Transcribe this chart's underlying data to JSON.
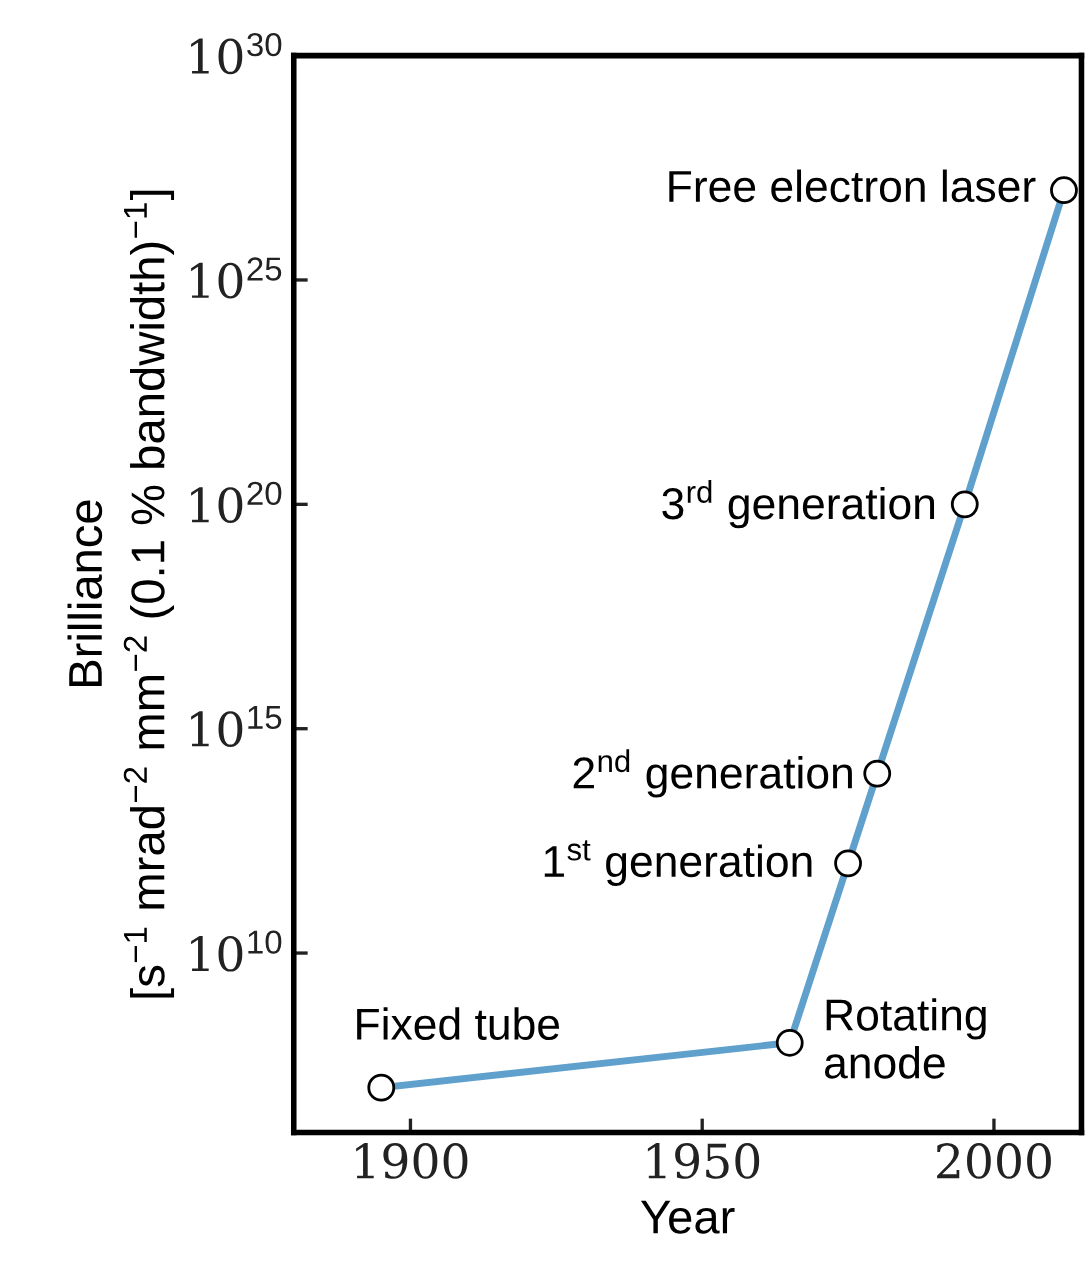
{
  "chart_data": {
    "type": "line",
    "xlabel": "Year",
    "ylabel": "Brilliance\n[s$^{−1}$ mrad$^{−2}$ mm$^{−2}$ (0.1 % bandwidth)$^{−1}$]",
    "x": [
      1895,
      1965,
      1975,
      1980,
      1995,
      2012
    ],
    "series": [
      {
        "color": "#5fa0cc",
        "values": [
          10000000.0,
          100000000.0,
          1000000000000.0,
          100000000000000.0,
          1e+20,
          1e+27
        ]
      }
    ],
    "marker": "circle",
    "line_style": "solid",
    "log": "y",
    "grid": false,
    "legend": false,
    "xlim": [
      1880,
      2015
    ],
    "xticks": [
      1900,
      1950,
      2000
    ],
    "ylim": [
      1000000.0,
      1e+30
    ],
    "yticks": [
      {
        "value": 10000000000.0,
        "label": "10$^{10}$"
      },
      {
        "value": 1000000000000000.0,
        "label": "10$^{15}$"
      },
      {
        "value": 1e+20,
        "label": "10$^{20}$"
      },
      {
        "value": 1e+25,
        "label": "10$^{25}$"
      },
      {
        "value": 1e+30,
        "label": "10$^{30}$"
      }
    ],
    "annotations": [
      {
        "text": "Fixed tube",
        "x": 1895,
        "y": 10000000.0
      },
      {
        "text": "Rotating\nanode",
        "x": 1965,
        "y": 100000000.0
      },
      {
        "text": "1$^{st}$ generation",
        "x": 1975,
        "y": 1000000000000.0
      },
      {
        "text": "2$^{nd}$ generation",
        "x": 1980,
        "y": 100000000000000.0
      },
      {
        "text": "3$^{rd}$ generation",
        "x": 1995,
        "y": 1e+20
      },
      {
        "text": "Free electron laser",
        "x": 2012,
        "y": 1e+27
      }
    ]
  }
}
